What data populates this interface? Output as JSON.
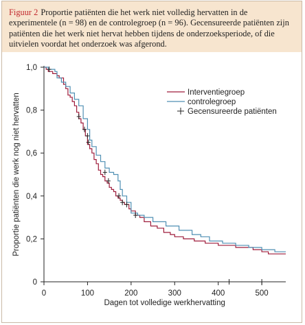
{
  "caption": {
    "label": "Figuur 2",
    "text": "Proportie patiënten die het werk niet volledig hervatten in de experimentele (n = 98) en de controlegroep (n = 96). Gecensureerde patiënten zijn patiënten die het werk niet hervat hebben tijdens de onderzoeksperiode, of die uitvielen voordat het onderzoek was afgerond."
  },
  "colors": {
    "caption_background": "#f7e5cf",
    "caption_label": "#c2282c",
    "intervention": "#9e1b3a",
    "control": "#4f8fb3",
    "censor": "#222222"
  },
  "chart_data": {
    "type": "line",
    "xlabel": "Dagen tot volledige werkhervatting",
    "ylabel": "Proportie patiënten die werk nog niet hervatten",
    "xlim": [
      0,
      555
    ],
    "ylim": [
      0,
      1.0
    ],
    "x_ticks": [
      0,
      100,
      200,
      300,
      400,
      500
    ],
    "x_tick_labels": [
      "0",
      "100",
      "200",
      "300",
      "400",
      "500"
    ],
    "y_ticks": [
      0,
      0.2,
      0.4,
      0.6,
      0.8,
      1.0
    ],
    "y_tick_labels": [
      "0",
      "0,2",
      "0,4",
      "0,6",
      "0,8",
      "1,0"
    ],
    "grid": false,
    "legend_position": "top-right",
    "legend": [
      {
        "label": "Interventiegroep",
        "kind": "line",
        "color_key": "intervention"
      },
      {
        "label": "controlegroep",
        "kind": "line",
        "color_key": "control"
      },
      {
        "label": "Gecensureerde patiënten",
        "kind": "marker",
        "color_key": "censor"
      }
    ],
    "series": [
      {
        "name": "Interventiegroep",
        "color_key": "intervention",
        "x": [
          0,
          5,
          10,
          20,
          30,
          35,
          45,
          50,
          55,
          60,
          65,
          70,
          75,
          80,
          85,
          90,
          95,
          100,
          105,
          110,
          115,
          120,
          125,
          130,
          135,
          140,
          145,
          150,
          155,
          160,
          165,
          170,
          175,
          180,
          185,
          190,
          195,
          200,
          210,
          220,
          230,
          245,
          260,
          275,
          290,
          300,
          320,
          345,
          370,
          400,
          440,
          480,
          500,
          515,
          555
        ],
        "y": [
          1.0,
          0.99,
          0.98,
          0.97,
          0.96,
          0.95,
          0.92,
          0.9,
          0.87,
          0.86,
          0.84,
          0.82,
          0.79,
          0.76,
          0.74,
          0.71,
          0.68,
          0.64,
          0.62,
          0.6,
          0.57,
          0.55,
          0.52,
          0.5,
          0.49,
          0.47,
          0.46,
          0.44,
          0.43,
          0.42,
          0.4,
          0.39,
          0.38,
          0.37,
          0.36,
          0.36,
          0.34,
          0.33,
          0.31,
          0.3,
          0.28,
          0.26,
          0.25,
          0.23,
          0.22,
          0.21,
          0.2,
          0.19,
          0.18,
          0.17,
          0.16,
          0.15,
          0.14,
          0.13,
          0.13
        ]
      },
      {
        "name": "controlegroep",
        "color_key": "control",
        "x": [
          0,
          10,
          20,
          25,
          30,
          40,
          50,
          60,
          70,
          80,
          90,
          100,
          105,
          110,
          120,
          130,
          140,
          150,
          160,
          170,
          175,
          180,
          190,
          200,
          215,
          230,
          250,
          280,
          310,
          340,
          360,
          380,
          410,
          440,
          470,
          500,
          530,
          555
        ],
        "y": [
          1.0,
          0.99,
          0.99,
          0.98,
          0.95,
          0.93,
          0.91,
          0.88,
          0.85,
          0.82,
          0.76,
          0.71,
          0.66,
          0.63,
          0.59,
          0.56,
          0.53,
          0.51,
          0.5,
          0.47,
          0.43,
          0.4,
          0.37,
          0.32,
          0.31,
          0.3,
          0.28,
          0.26,
          0.24,
          0.22,
          0.21,
          0.19,
          0.18,
          0.17,
          0.16,
          0.15,
          0.14,
          0.14
        ]
      }
    ],
    "censored": [
      {
        "x": 12,
        "y": 0.99
      },
      {
        "x": 80,
        "y": 0.77
      },
      {
        "x": 93,
        "y": 0.71
      },
      {
        "x": 100,
        "y": 0.68
      },
      {
        "x": 102,
        "y": 0.65
      },
      {
        "x": 140,
        "y": 0.51
      },
      {
        "x": 148,
        "y": 0.47
      },
      {
        "x": 172,
        "y": 0.4
      },
      {
        "x": 180,
        "y": 0.37
      },
      {
        "x": 190,
        "y": 0.36
      },
      {
        "x": 210,
        "y": 0.31
      },
      {
        "x": 425,
        "y": 0.0
      },
      {
        "x": 500,
        "y": 0.0
      }
    ]
  }
}
